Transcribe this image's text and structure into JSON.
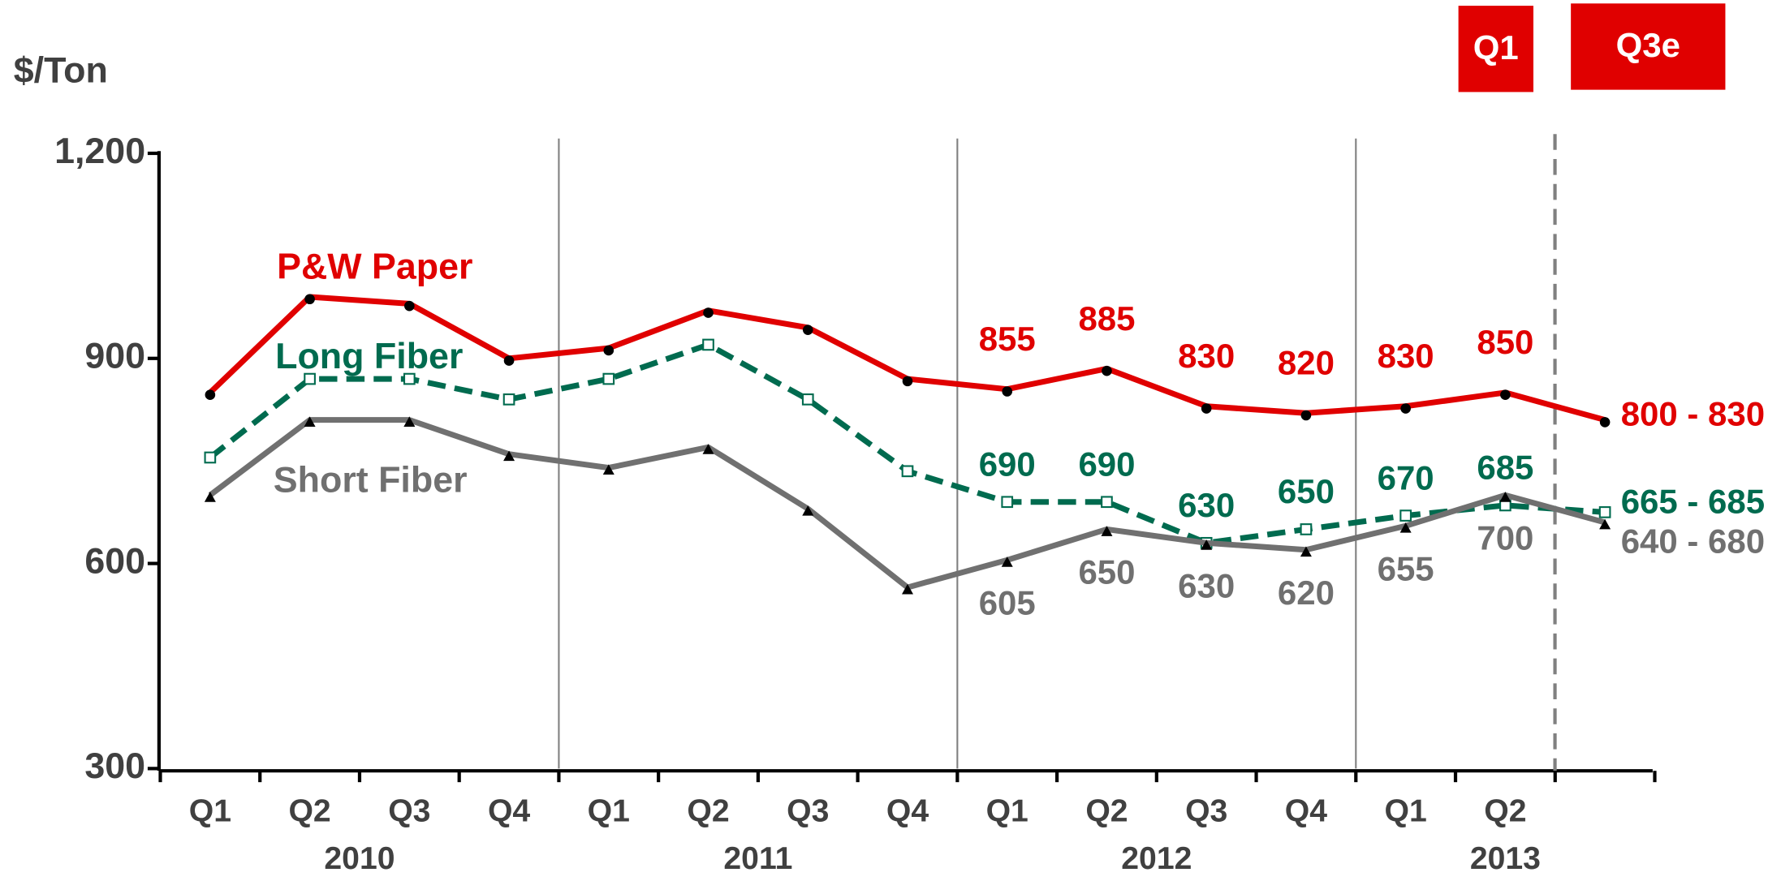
{
  "chart_data": {
    "type": "line",
    "y_label": "$/Ton",
    "categories": [
      "Q1",
      "Q2",
      "Q3",
      "Q4",
      "Q1",
      "Q2",
      "Q3",
      "Q4",
      "Q1",
      "Q2",
      "Q3",
      "Q4",
      "Q1",
      "Q2",
      null
    ],
    "years": [
      "2010",
      "2011",
      "2012",
      "2013"
    ],
    "series": [
      {
        "name": "P&W Paper",
        "color": "#e00000",
        "dash": false,
        "values": [
          850,
          990,
          980,
          900,
          915,
          970,
          945,
          870,
          855,
          885,
          830,
          820,
          830,
          850,
          810
        ],
        "range_label": "800 - 830"
      },
      {
        "name": "Long Fiber",
        "color": "#006b4f",
        "dash": true,
        "values": [
          755,
          870,
          870,
          840,
          870,
          920,
          840,
          735,
          690,
          690,
          630,
          650,
          670,
          685,
          675
        ],
        "range_label": "665 - 685"
      },
      {
        "name": "Short Fiber",
        "color": "#707070",
        "dash": false,
        "values": [
          700,
          810,
          810,
          760,
          740,
          770,
          680,
          565,
          605,
          650,
          630,
          620,
          655,
          700,
          660
        ],
        "range_label": "640 - 680"
      }
    ],
    "data_label_indices": [
      8,
      9,
      10,
      11,
      12,
      13
    ],
    "ylim": [
      300,
      1200
    ],
    "yticks": [
      300,
      600,
      900,
      {
        "value": 1200,
        "label": "1,200"
      }
    ],
    "annotations": [
      "Q1",
      "Q3e"
    ]
  }
}
